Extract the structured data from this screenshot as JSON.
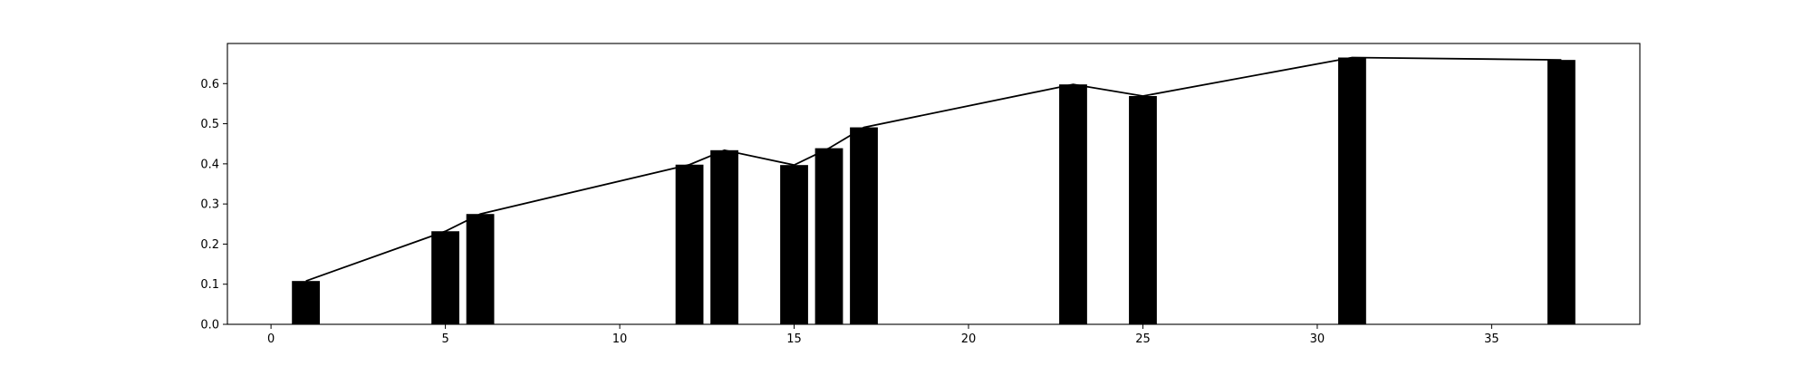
{
  "chart_data": {
    "type": "bar",
    "title": "",
    "xlabel": "",
    "ylabel": "",
    "xlim": [
      -1.25,
      39.25
    ],
    "ylim": [
      0.0,
      0.7
    ],
    "grid": false,
    "x_ticks": [
      0,
      5,
      10,
      15,
      20,
      25,
      30,
      35
    ],
    "x_tick_labels": [
      "0",
      "5",
      "10",
      "15",
      "20",
      "25",
      "30",
      "35"
    ],
    "y_ticks": [
      0.0,
      0.1,
      0.2,
      0.3,
      0.4,
      0.5,
      0.6
    ],
    "y_tick_labels": [
      "0.0",
      "0.1",
      "0.2",
      "0.3",
      "0.4",
      "0.5",
      "0.6"
    ],
    "bar_width": 0.8,
    "bar_color": "#000000",
    "line_color": "#000000",
    "series": [
      {
        "type": "bar",
        "x": [
          1,
          5,
          6,
          12,
          13,
          15,
          16,
          17,
          23,
          25,
          31,
          37
        ],
        "values": [
          0.108,
          0.232,
          0.275,
          0.398,
          0.434,
          0.397,
          0.439,
          0.491,
          0.598,
          0.569,
          0.665,
          0.659
        ]
      },
      {
        "type": "line",
        "x": [
          1,
          5,
          6,
          12,
          13,
          15,
          16,
          17,
          23,
          25,
          31,
          37
        ],
        "values": [
          0.108,
          0.232,
          0.275,
          0.398,
          0.434,
          0.397,
          0.439,
          0.491,
          0.598,
          0.569,
          0.665,
          0.659
        ]
      }
    ]
  }
}
